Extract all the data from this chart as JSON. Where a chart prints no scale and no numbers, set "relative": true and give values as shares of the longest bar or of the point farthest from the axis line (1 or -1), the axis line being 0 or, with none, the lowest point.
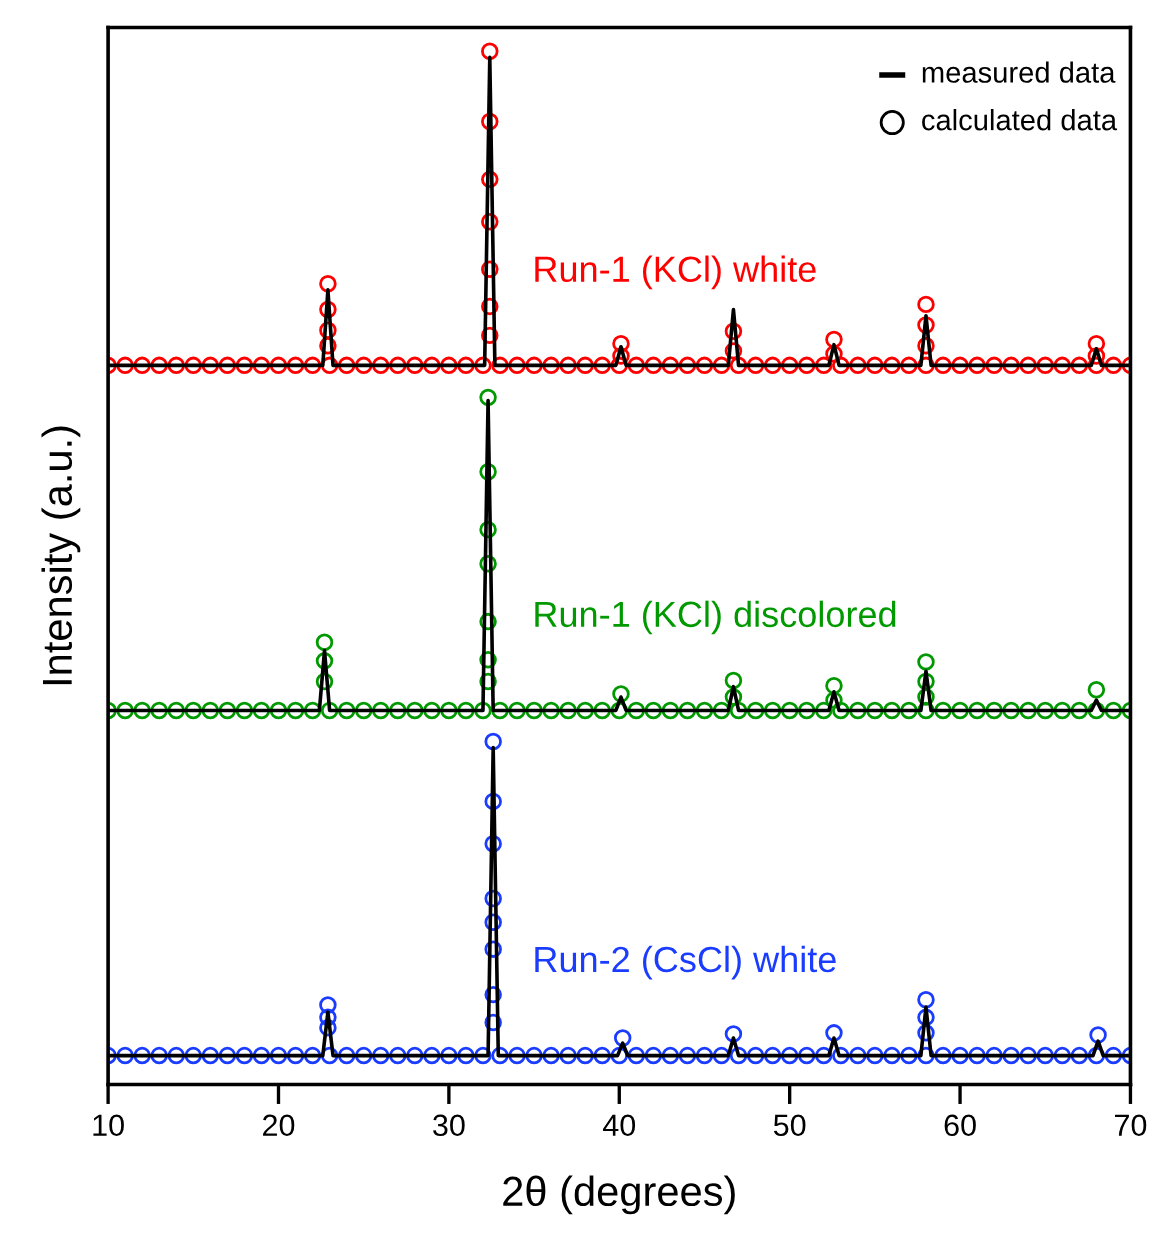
{
  "chart_data": {
    "type": "line",
    "relative": true,
    "xlabel": "2θ (degrees)",
    "ylabel": "Intensity (a.u.)",
    "xlim": [
      10,
      70
    ],
    "xticks": [
      10,
      20,
      30,
      40,
      50,
      60,
      70
    ],
    "tick_labels": "x",
    "grid": false,
    "legend": false,
    "annotations": [
      "measured data",
      "calculated data"
    ],
    "series": [
      {
        "color": "#000000",
        "x": [
          10,
          22.6,
          22.9,
          23.2,
          32.1,
          32.4,
          32.7,
          39.8,
          40.1,
          40.4,
          46.4,
          46.7,
          47.0,
          52.3,
          52.6,
          52.9,
          57.7,
          58.0,
          58.3,
          67.7,
          68.0,
          68.3,
          70
        ],
        "values": [
          0.696,
          0.696,
          0.769,
          0.696,
          0.696,
          0.994,
          0.696,
          0.696,
          0.714,
          0.696,
          0.696,
          0.75,
          0.696,
          0.696,
          0.716,
          0.696,
          0.696,
          0.744,
          0.696,
          0.696,
          0.712,
          0.696,
          0.696
        ]
      },
      {
        "type": "scatter",
        "name": "Run-1 (KCl) white",
        "color": "#ff0000",
        "x": [
          10,
          11,
          12,
          13,
          14,
          15,
          16,
          17,
          18,
          19,
          20,
          21,
          22,
          23,
          24,
          25,
          26,
          27,
          28,
          29,
          30,
          31,
          32,
          33,
          34,
          35,
          36,
          37,
          38,
          39,
          40,
          41,
          42,
          43,
          44,
          45,
          46,
          47,
          48,
          49,
          50,
          51,
          52,
          53,
          54,
          55,
          56,
          57,
          58,
          59,
          60,
          61,
          62,
          63,
          64,
          65,
          66,
          67,
          68,
          69,
          70,
          22.9,
          22.9,
          22.9,
          22.9,
          32.4,
          32.4,
          32.4,
          32.4,
          32.4,
          32.4,
          32.4,
          40.1,
          40.1,
          46.7,
          46.7,
          52.6,
          52.6,
          58.0,
          58.0,
          58.0,
          68.0,
          68.0
        ],
        "values": [
          0.696,
          0.696,
          0.696,
          0.696,
          0.696,
          0.696,
          0.696,
          0.696,
          0.696,
          0.696,
          0.696,
          0.696,
          0.696,
          0.696,
          0.696,
          0.696,
          0.696,
          0.696,
          0.696,
          0.696,
          0.696,
          0.696,
          0.696,
          0.696,
          0.696,
          0.696,
          0.696,
          0.696,
          0.696,
          0.696,
          0.696,
          0.696,
          0.696,
          0.696,
          0.696,
          0.696,
          0.696,
          0.696,
          0.696,
          0.696,
          0.696,
          0.696,
          0.696,
          0.696,
          0.696,
          0.696,
          0.696,
          0.696,
          0.696,
          0.696,
          0.696,
          0.696,
          0.696,
          0.696,
          0.696,
          0.696,
          0.696,
          0.696,
          0.696,
          0.696,
          0.696,
          0.775,
          0.75,
          0.73,
          0.715,
          1.0,
          0.932,
          0.876,
          0.835,
          0.789,
          0.753,
          0.725,
          0.717,
          0.705,
          0.729,
          0.71,
          0.721,
          0.707,
          0.755,
          0.735,
          0.715,
          0.717,
          0.705
        ]
      },
      {
        "color": "#000000",
        "x": [
          10,
          22.4,
          22.7,
          23.0,
          32.0,
          32.3,
          32.6,
          39.8,
          40.1,
          40.4,
          46.4,
          46.7,
          47.0,
          52.3,
          52.6,
          52.9,
          57.7,
          58.0,
          58.3,
          67.7,
          68.0,
          68.3,
          70
        ],
        "values": [
          0.362,
          0.362,
          0.42,
          0.362,
          0.362,
          0.662,
          0.362,
          0.362,
          0.375,
          0.362,
          0.362,
          0.385,
          0.362,
          0.362,
          0.38,
          0.362,
          0.362,
          0.4,
          0.362,
          0.362,
          0.372,
          0.362,
          0.362
        ]
      },
      {
        "type": "scatter",
        "name": "Run-1 (KCl) discolored",
        "color": "#009900",
        "x": [
          10,
          11,
          12,
          13,
          14,
          15,
          16,
          17,
          18,
          19,
          20,
          21,
          22,
          23,
          24,
          25,
          26,
          27,
          28,
          29,
          30,
          31,
          32,
          33,
          34,
          35,
          36,
          37,
          38,
          39,
          40,
          41,
          42,
          43,
          44,
          45,
          46,
          47,
          48,
          49,
          50,
          51,
          52,
          53,
          54,
          55,
          56,
          57,
          58,
          59,
          60,
          61,
          62,
          63,
          64,
          65,
          66,
          67,
          68,
          69,
          70,
          22.7,
          22.7,
          22.7,
          32.3,
          32.3,
          32.3,
          32.3,
          32.3,
          32.3,
          32.3,
          40.1,
          46.7,
          46.7,
          52.6,
          52.6,
          58.0,
          58.0,
          58.0,
          68.0
        ],
        "values": [
          0.362,
          0.362,
          0.362,
          0.362,
          0.362,
          0.362,
          0.362,
          0.362,
          0.362,
          0.362,
          0.362,
          0.362,
          0.362,
          0.362,
          0.362,
          0.362,
          0.362,
          0.362,
          0.362,
          0.362,
          0.362,
          0.362,
          0.362,
          0.362,
          0.362,
          0.362,
          0.362,
          0.362,
          0.362,
          0.362,
          0.362,
          0.362,
          0.362,
          0.362,
          0.362,
          0.362,
          0.362,
          0.362,
          0.362,
          0.362,
          0.362,
          0.362,
          0.362,
          0.362,
          0.362,
          0.362,
          0.362,
          0.362,
          0.362,
          0.362,
          0.362,
          0.362,
          0.362,
          0.362,
          0.362,
          0.362,
          0.362,
          0.362,
          0.362,
          0.362,
          0.362,
          0.428,
          0.41,
          0.39,
          0.665,
          0.593,
          0.537,
          0.504,
          0.448,
          0.411,
          0.39,
          0.378,
          0.391,
          0.375,
          0.386,
          0.372,
          0.409,
          0.39,
          0.375,
          0.382
        ]
      },
      {
        "color": "#000000",
        "x": [
          10,
          22.6,
          22.9,
          23.2,
          32.3,
          32.6,
          32.9,
          39.9,
          40.2,
          40.5,
          46.4,
          46.7,
          47.0,
          52.3,
          52.6,
          52.9,
          57.7,
          58.0,
          58.3,
          67.8,
          68.1,
          68.4,
          70
        ],
        "values": [
          0.028,
          0.028,
          0.07,
          0.028,
          0.028,
          0.326,
          0.028,
          0.028,
          0.04,
          0.028,
          0.028,
          0.045,
          0.028,
          0.028,
          0.045,
          0.028,
          0.028,
          0.075,
          0.028,
          0.028,
          0.042,
          0.028,
          0.028
        ]
      },
      {
        "type": "scatter",
        "name": "Run-2 (CsCl) white",
        "color": "#1a3cff",
        "x": [
          10,
          11,
          12,
          13,
          14,
          15,
          16,
          17,
          18,
          19,
          20,
          21,
          22,
          23,
          24,
          25,
          26,
          27,
          28,
          29,
          30,
          31,
          32,
          33,
          34,
          35,
          36,
          37,
          38,
          39,
          40,
          41,
          42,
          43,
          44,
          45,
          46,
          47,
          48,
          49,
          50,
          51,
          52,
          53,
          54,
          55,
          56,
          57,
          58,
          59,
          60,
          61,
          62,
          63,
          64,
          65,
          66,
          67,
          68,
          69,
          70,
          22.9,
          22.9,
          22.9,
          32.6,
          32.6,
          32.6,
          32.6,
          32.6,
          32.6,
          32.6,
          32.6,
          40.2,
          46.7,
          52.6,
          58.0,
          58.0,
          58.0,
          68.1
        ],
        "values": [
          0.028,
          0.028,
          0.028,
          0.028,
          0.028,
          0.028,
          0.028,
          0.028,
          0.028,
          0.028,
          0.028,
          0.028,
          0.028,
          0.028,
          0.028,
          0.028,
          0.028,
          0.028,
          0.028,
          0.028,
          0.028,
          0.028,
          0.028,
          0.028,
          0.028,
          0.028,
          0.028,
          0.028,
          0.028,
          0.028,
          0.028,
          0.028,
          0.028,
          0.028,
          0.028,
          0.028,
          0.028,
          0.028,
          0.028,
          0.028,
          0.028,
          0.028,
          0.028,
          0.028,
          0.028,
          0.028,
          0.028,
          0.028,
          0.028,
          0.028,
          0.028,
          0.028,
          0.028,
          0.028,
          0.028,
          0.028,
          0.028,
          0.028,
          0.028,
          0.028,
          0.028,
          0.077,
          0.065,
          0.055,
          0.332,
          0.274,
          0.233,
          0.18,
          0.157,
          0.131,
          0.087,
          0.06,
          0.045,
          0.049,
          0.05,
          0.082,
          0.065,
          0.05,
          0.048
        ]
      }
    ]
  }
}
